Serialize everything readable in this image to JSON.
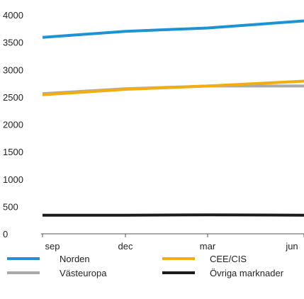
{
  "chart_data": {
    "type": "line",
    "categories": [
      "sep",
      "dec",
      "mar",
      "jun"
    ],
    "x": [
      0,
      1,
      2,
      3
    ],
    "xticks": [
      {
        "x": 0,
        "label": "sep"
      },
      {
        "x": 1,
        "label": "dec"
      },
      {
        "x": 2,
        "label": "mar"
      },
      {
        "x": 3,
        "label": "jun"
      }
    ],
    "ylim": [
      0,
      4000
    ],
    "yticks": [
      "4000",
      "3500",
      "3000",
      "2500",
      "2000",
      "1500",
      "1000",
      "500",
      "0"
    ],
    "grid": false,
    "legend_placement": "bottom",
    "series": [
      {
        "name": "Norden",
        "color": "#1e93d3",
        "values": [
          3590,
          3700,
          3760,
          3890
        ]
      },
      {
        "name": "CEE/CIS",
        "color": "#f2ae10",
        "values": [
          2540,
          2640,
          2700,
          2790
        ]
      },
      {
        "name": "Västeuropa",
        "color": "#a9a9a9",
        "values": [
          2560,
          2650,
          2700,
          2700
        ]
      },
      {
        "name": "Övriga marknader",
        "color": "#1b1b1b",
        "values": [
          340,
          340,
          345,
          340
        ]
      }
    ]
  }
}
